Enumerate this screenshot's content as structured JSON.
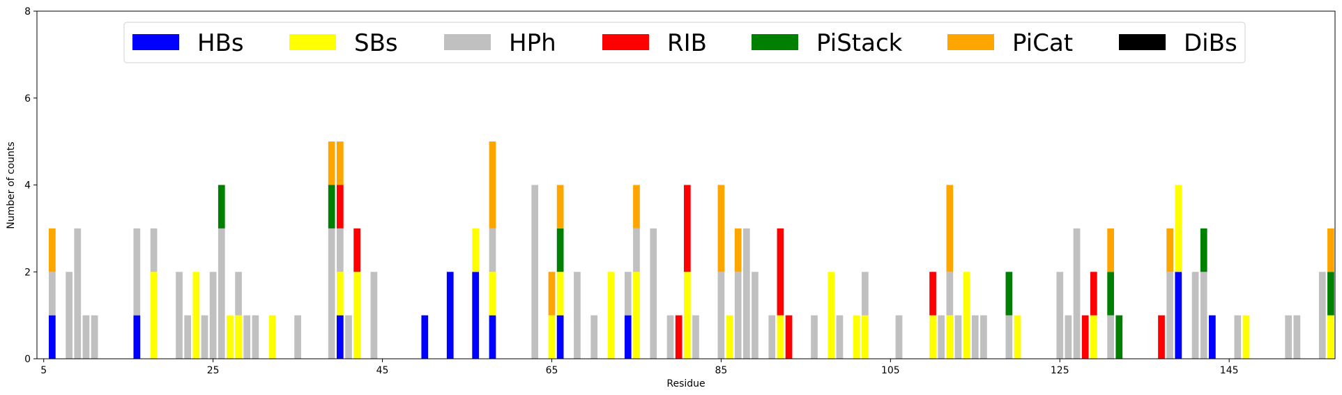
{
  "chart_data": {
    "type": "bar",
    "stacked": true,
    "xlabel": "Residue",
    "ylabel": "Number of counts",
    "xlim": [
      5,
      157
    ],
    "ylim": [
      0,
      8
    ],
    "xticks": [
      5,
      25,
      45,
      65,
      85,
      105,
      125,
      145
    ],
    "yticks": [
      0,
      2,
      4,
      6,
      8
    ],
    "grid": false,
    "legend_position": "top",
    "series": [
      {
        "name": "HBs",
        "color": "#0000ff"
      },
      {
        "name": "SBs",
        "color": "#ffff00"
      },
      {
        "name": "HPh",
        "color": "#c0c0c0"
      },
      {
        "name": "RIB",
        "color": "#ff0000"
      },
      {
        "name": "PiStack",
        "color": "#008000"
      },
      {
        "name": "PiCat",
        "color": "#ffa500"
      },
      {
        "name": "DiBs",
        "color": "#000000"
      }
    ],
    "bars": [
      {
        "x": 6,
        "HBs": 1,
        "HPh": 1,
        "PiCat": 1
      },
      {
        "x": 8,
        "HPh": 2
      },
      {
        "x": 9,
        "HPh": 3
      },
      {
        "x": 10,
        "HPh": 1
      },
      {
        "x": 11,
        "HPh": 1
      },
      {
        "x": 16,
        "HBs": 1,
        "HPh": 2
      },
      {
        "x": 18,
        "SBs": 2,
        "HPh": 1
      },
      {
        "x": 21,
        "HPh": 2
      },
      {
        "x": 22,
        "HPh": 1
      },
      {
        "x": 23,
        "SBs": 2
      },
      {
        "x": 24,
        "HPh": 1
      },
      {
        "x": 25,
        "HPh": 2
      },
      {
        "x": 26,
        "HPh": 3,
        "PiStack": 1
      },
      {
        "x": 27,
        "SBs": 1
      },
      {
        "x": 28,
        "SBs": 1,
        "HPh": 1
      },
      {
        "x": 29,
        "HPh": 1
      },
      {
        "x": 30,
        "HPh": 1
      },
      {
        "x": 32,
        "SBs": 1
      },
      {
        "x": 35,
        "HPh": 1
      },
      {
        "x": 39,
        "HPh": 3,
        "PiStack": 1,
        "PiCat": 1
      },
      {
        "x": 40,
        "HBs": 1,
        "SBs": 1,
        "HPh": 1,
        "RIB": 1,
        "PiCat": 1
      },
      {
        "x": 41,
        "HPh": 1
      },
      {
        "x": 42,
        "SBs": 2,
        "RIB": 1
      },
      {
        "x": 44,
        "HPh": 2
      },
      {
        "x": 50,
        "HBs": 1
      },
      {
        "x": 53,
        "HBs": 2
      },
      {
        "x": 56,
        "HBs": 2,
        "SBs": 1
      },
      {
        "x": 58,
        "HBs": 1,
        "SBs": 1,
        "HPh": 1,
        "PiCat": 2
      },
      {
        "x": 63,
        "HPh": 4
      },
      {
        "x": 65,
        "SBs": 1,
        "PiCat": 1
      },
      {
        "x": 66,
        "HBs": 1,
        "SBs": 1,
        "PiStack": 1,
        "PiCat": 1
      },
      {
        "x": 68,
        "HPh": 2
      },
      {
        "x": 70,
        "HPh": 1
      },
      {
        "x": 72,
        "SBs": 2
      },
      {
        "x": 74,
        "HBs": 1,
        "HPh": 1
      },
      {
        "x": 75,
        "SBs": 2,
        "HPh": 1,
        "PiCat": 1
      },
      {
        "x": 77,
        "HPh": 3
      },
      {
        "x": 79,
        "HPh": 1
      },
      {
        "x": 80,
        "RIB": 1
      },
      {
        "x": 81,
        "SBs": 2,
        "RIB": 2
      },
      {
        "x": 82,
        "HPh": 1
      },
      {
        "x": 85,
        "HPh": 2,
        "PiCat": 2
      },
      {
        "x": 86,
        "SBs": 1
      },
      {
        "x": 87,
        "HPh": 2,
        "PiCat": 1
      },
      {
        "x": 88,
        "HPh": 3
      },
      {
        "x": 89,
        "HPh": 2
      },
      {
        "x": 91,
        "HPh": 1
      },
      {
        "x": 92,
        "SBs": 1,
        "RIB": 2
      },
      {
        "x": 93,
        "RIB": 1
      },
      {
        "x": 96,
        "HPh": 1
      },
      {
        "x": 98,
        "SBs": 2
      },
      {
        "x": 99,
        "HPh": 1
      },
      {
        "x": 101,
        "SBs": 1
      },
      {
        "x": 102,
        "SBs": 1,
        "HPh": 1
      },
      {
        "x": 106,
        "HPh": 1
      },
      {
        "x": 110,
        "SBs": 1,
        "RIB": 1
      },
      {
        "x": 111,
        "HPh": 1
      },
      {
        "x": 112,
        "SBs": 1,
        "HPh": 1,
        "PiCat": 2
      },
      {
        "x": 113,
        "HPh": 1
      },
      {
        "x": 114,
        "SBs": 2
      },
      {
        "x": 115,
        "HPh": 1
      },
      {
        "x": 116,
        "HPh": 1
      },
      {
        "x": 119,
        "HPh": 1,
        "PiStack": 1
      },
      {
        "x": 120,
        "SBs": 1
      },
      {
        "x": 125,
        "HPh": 2
      },
      {
        "x": 126,
        "HPh": 1
      },
      {
        "x": 127,
        "HPh": 3
      },
      {
        "x": 128,
        "RIB": 1
      },
      {
        "x": 129,
        "SBs": 1,
        "RIB": 1
      },
      {
        "x": 131,
        "HPh": 1,
        "PiStack": 1,
        "PiCat": 1
      },
      {
        "x": 132,
        "PiStack": 1
      },
      {
        "x": 137,
        "RIB": 1
      },
      {
        "x": 138,
        "HPh": 2,
        "PiCat": 1
      },
      {
        "x": 139,
        "HBs": 2,
        "SBs": 2
      },
      {
        "x": 141,
        "HPh": 2
      },
      {
        "x": 142,
        "HPh": 2,
        "PiStack": 1
      },
      {
        "x": 143,
        "HBs": 1
      },
      {
        "x": 146,
        "HPh": 1
      },
      {
        "x": 147,
        "SBs": 1
      },
      {
        "x": 152,
        "HPh": 1
      },
      {
        "x": 153,
        "HPh": 1
      },
      {
        "x": 156,
        "HPh": 2
      },
      {
        "x": 157,
        "SBs": 1,
        "PiStack": 1,
        "PiCat": 1
      }
    ]
  }
}
